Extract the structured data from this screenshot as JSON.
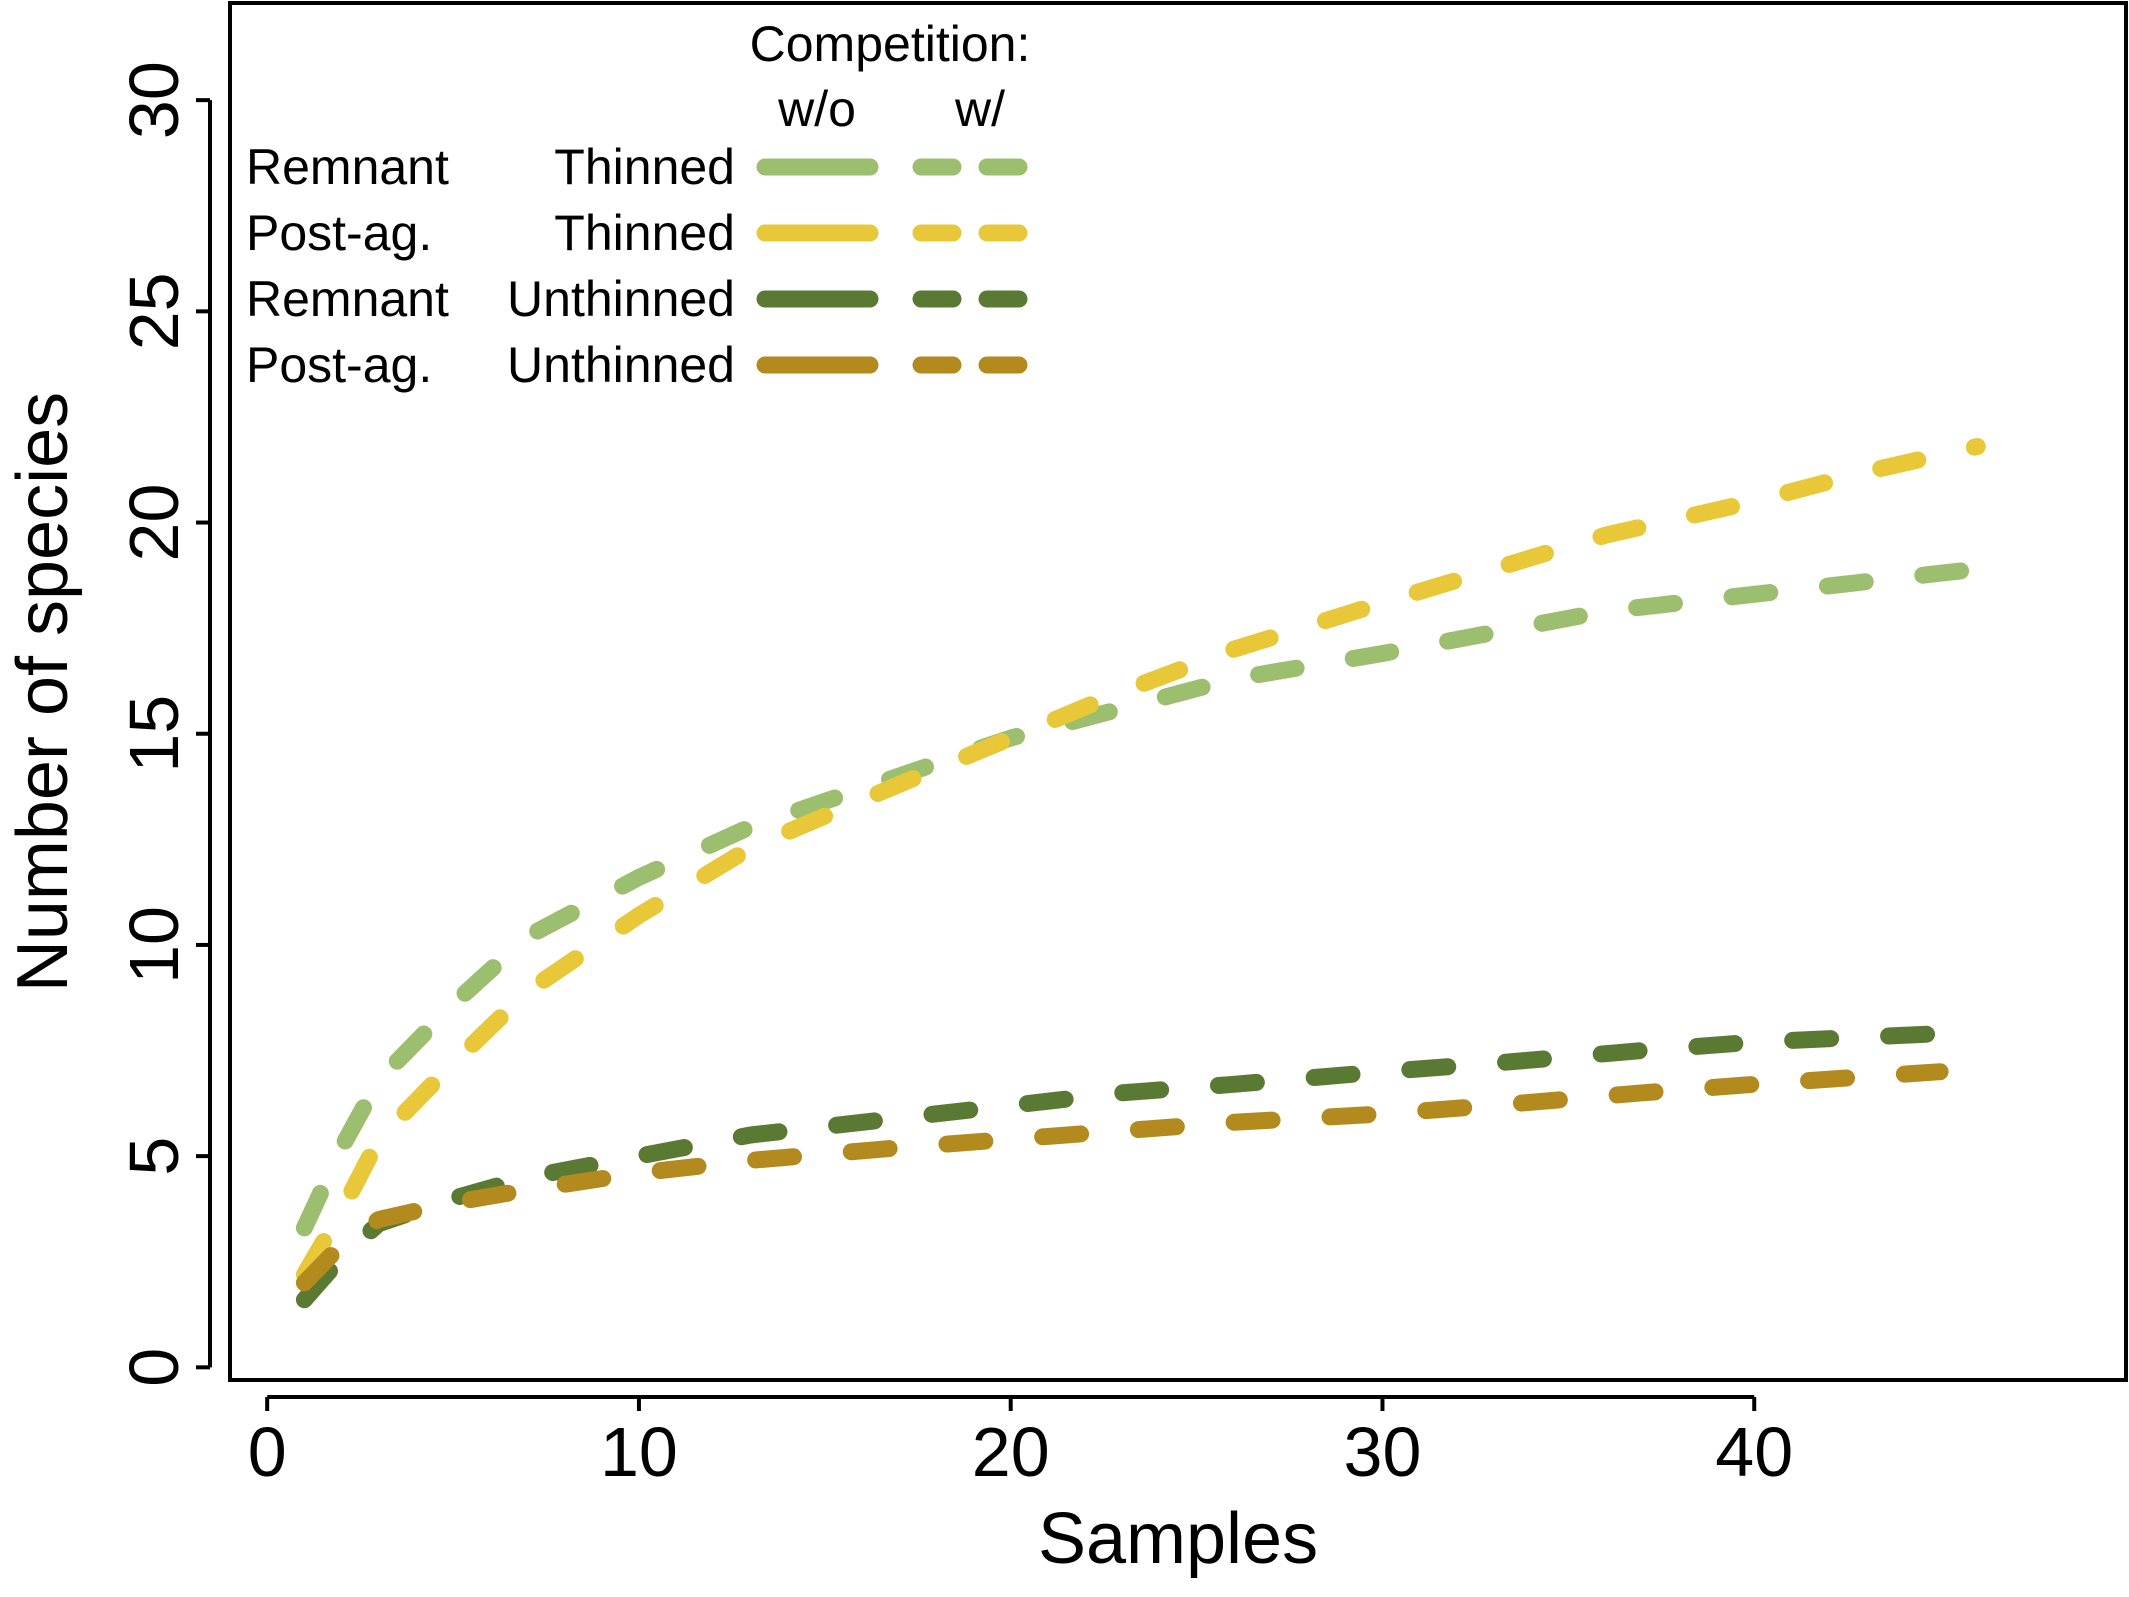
{
  "chart_data": {
    "type": "line",
    "xlabel": "Samples",
    "ylabel": "Number of species",
    "xlim": [
      -1,
      50
    ],
    "ylim": [
      -0.3,
      32.3
    ],
    "xticks": [
      0,
      10,
      20,
      30,
      40
    ],
    "yticks": [
      0,
      5,
      10,
      15,
      20,
      25,
      30
    ],
    "grid": false,
    "legend": {
      "title": "Competition:",
      "column_headers": [
        "w/o",
        "w/"
      ],
      "placement": "top-left"
    },
    "series": [
      {
        "site": "Remnant",
        "treatment": "Thinned",
        "color": "#9bbf6e",
        "x": [
          1,
          2,
          3,
          5,
          7,
          10,
          13,
          17,
          20,
          23,
          26,
          30,
          33,
          36,
          40,
          43,
          47
        ],
        "y": [
          3.3,
          5.2,
          6.8,
          8.6,
          10.2,
          11.6,
          12.8,
          14.0,
          14.9,
          15.6,
          16.3,
          16.9,
          17.4,
          17.9,
          18.3,
          18.6,
          19.0
        ]
      },
      {
        "site": "Post-ag.",
        "treatment": "Thinned",
        "color": "#e8c838",
        "x": [
          1,
          2,
          3,
          5,
          7,
          10,
          13,
          17,
          20,
          23,
          26,
          30,
          33,
          36,
          40,
          43,
          46
        ],
        "y": [
          2.2,
          3.7,
          5.4,
          7.2,
          8.9,
          10.7,
          12.3,
          13.8,
          14.9,
          16.0,
          17.0,
          18.1,
          18.9,
          19.7,
          20.5,
          21.2,
          21.8
        ]
      },
      {
        "site": "Remnant",
        "treatment": "Unthinned",
        "color": "#5a7a33",
        "x": [
          1,
          2,
          3,
          5,
          7,
          10,
          13,
          17,
          20,
          23,
          26,
          30,
          33,
          37,
          40,
          45
        ],
        "y": [
          1.6,
          2.6,
          3.4,
          4.0,
          4.5,
          5.0,
          5.5,
          5.9,
          6.2,
          6.5,
          6.7,
          7.0,
          7.2,
          7.5,
          7.7,
          7.9
        ]
      },
      {
        "site": "Post-ag.",
        "treatment": "Unthinned",
        "color": "#b38a1e",
        "x": [
          1,
          2,
          3,
          5,
          7,
          10,
          13,
          17,
          20,
          23,
          26,
          30,
          33,
          37,
          40,
          45
        ],
        "y": [
          2.0,
          2.9,
          3.5,
          3.9,
          4.2,
          4.6,
          4.9,
          5.2,
          5.4,
          5.6,
          5.8,
          6.0,
          6.2,
          6.5,
          6.7,
          7.0
        ]
      }
    ]
  }
}
